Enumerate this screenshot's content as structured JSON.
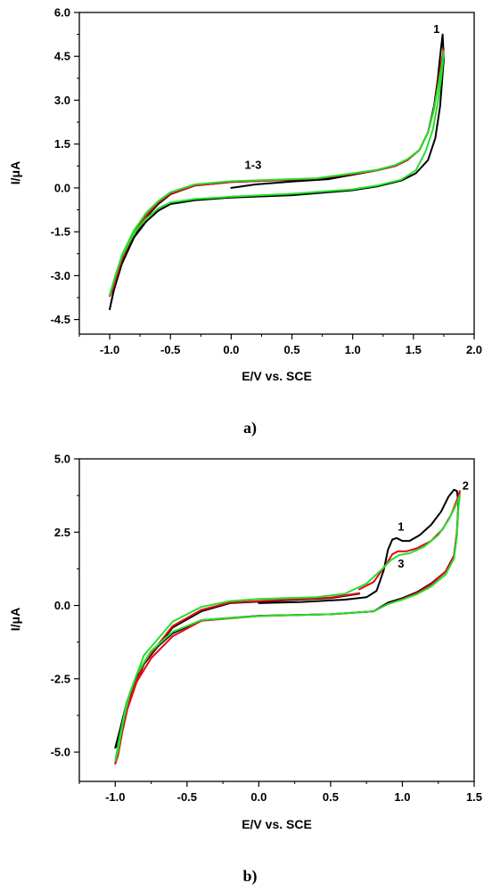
{
  "chart_data": [
    {
      "type": "line",
      "panel_label": "a)",
      "xlabel": "E/V vs. SCE",
      "ylabel": "I/μA",
      "xlim": [
        -1.25,
        2.0
      ],
      "ylim": [
        -5.0,
        6.0
      ],
      "x_ticks": [
        -1.0,
        -0.5,
        0.0,
        0.5,
        1.0,
        1.5,
        2.0
      ],
      "x_tick_labels": [
        "-1.0",
        "-0.5",
        "0.0",
        "0.5",
        "1.0",
        "1.5",
        "2.0"
      ],
      "y_ticks": [
        -4.5,
        -3.0,
        -1.5,
        0.0,
        1.5,
        3.0,
        4.5,
        6.0
      ],
      "y_tick_labels": [
        "-4.5",
        "-3.0",
        "-1.5",
        "0.0",
        "1.5",
        "3.0",
        "4.5",
        "6.0"
      ],
      "grid": false,
      "annotations": [
        {
          "text": "1",
          "x": 1.69,
          "y": 5.3
        },
        {
          "text": "1-3",
          "x": 0.18,
          "y": 0.65
        }
      ],
      "series": [
        {
          "color": "#000000",
          "points": [
            [
              0.0,
              0.0
            ],
            [
              0.2,
              0.12
            ],
            [
              0.5,
              0.22
            ],
            [
              0.8,
              0.3
            ],
            [
              1.0,
              0.45
            ],
            [
              1.2,
              0.6
            ],
            [
              1.35,
              0.75
            ],
            [
              1.45,
              0.95
            ],
            [
              1.55,
              1.3
            ],
            [
              1.62,
              1.9
            ],
            [
              1.67,
              2.8
            ],
            [
              1.7,
              3.7
            ],
            [
              1.72,
              4.5
            ],
            [
              1.74,
              5.25
            ],
            [
              1.75,
              4.4
            ],
            [
              1.72,
              2.8
            ],
            [
              1.68,
              1.7
            ],
            [
              1.62,
              0.95
            ],
            [
              1.52,
              0.5
            ],
            [
              1.4,
              0.25
            ],
            [
              1.2,
              0.05
            ],
            [
              1.0,
              -0.08
            ],
            [
              0.5,
              -0.25
            ],
            [
              0.0,
              -0.33
            ],
            [
              -0.3,
              -0.42
            ],
            [
              -0.5,
              -0.55
            ],
            [
              -0.6,
              -0.78
            ],
            [
              -0.7,
              -1.15
            ],
            [
              -0.8,
              -1.7
            ],
            [
              -0.9,
              -2.5
            ],
            [
              -0.95,
              -3.2
            ],
            [
              -1.0,
              -4.15
            ],
            [
              -0.97,
              -3.55
            ],
            [
              -0.9,
              -2.6
            ],
            [
              -0.8,
              -1.7
            ],
            [
              -0.7,
              -1.0
            ],
            [
              -0.6,
              -0.55
            ],
            [
              -0.5,
              -0.22
            ],
            [
              -0.3,
              0.08
            ],
            [
              0.0,
              0.2
            ],
            [
              0.3,
              0.25
            ],
            [
              0.7,
              0.3
            ],
            [
              1.0,
              0.45
            ]
          ]
        },
        {
          "color": "#e8001c",
          "points": [
            [
              -0.8,
              -1.55
            ],
            [
              -0.9,
              -2.4
            ],
            [
              -1.0,
              -3.7
            ],
            [
              -0.97,
              -3.4
            ],
            [
              -0.9,
              -2.45
            ],
            [
              -0.8,
              -1.55
            ],
            [
              -0.7,
              -0.95
            ],
            [
              -0.6,
              -0.5
            ],
            [
              -0.5,
              -0.2
            ],
            [
              -0.3,
              0.08
            ],
            [
              0.0,
              0.2
            ],
            [
              0.3,
              0.25
            ],
            [
              0.7,
              0.32
            ],
            [
              1.0,
              0.48
            ],
            [
              1.2,
              0.6
            ],
            [
              1.35,
              0.75
            ],
            [
              1.45,
              0.95
            ],
            [
              1.55,
              1.3
            ],
            [
              1.62,
              1.9
            ],
            [
              1.67,
              2.7
            ],
            [
              1.7,
              3.5
            ],
            [
              1.73,
              4.3
            ],
            [
              1.75,
              4.75
            ]
          ]
        },
        {
          "color": "#22e02a",
          "points": [
            [
              1.75,
              4.6
            ],
            [
              1.73,
              3.8
            ],
            [
              1.7,
              2.9
            ],
            [
              1.66,
              2.0
            ],
            [
              1.6,
              1.25
            ],
            [
              1.52,
              0.6
            ],
            [
              1.4,
              0.28
            ],
            [
              1.2,
              0.08
            ],
            [
              1.0,
              -0.05
            ],
            [
              0.5,
              -0.2
            ],
            [
              0.0,
              -0.3
            ],
            [
              -0.3,
              -0.38
            ],
            [
              -0.5,
              -0.5
            ],
            [
              -0.6,
              -0.7
            ],
            [
              -0.7,
              -1.05
            ],
            [
              -0.8,
              -1.55
            ],
            [
              -0.9,
              -2.35
            ],
            [
              -0.95,
              -2.95
            ],
            [
              -1.0,
              -3.65
            ],
            [
              -0.97,
              -3.25
            ],
            [
              -0.9,
              -2.3
            ],
            [
              -0.8,
              -1.45
            ],
            [
              -0.7,
              -0.85
            ],
            [
              -0.6,
              -0.45
            ],
            [
              -0.5,
              -0.15
            ],
            [
              -0.3,
              0.12
            ],
            [
              0.0,
              0.23
            ],
            [
              0.3,
              0.27
            ],
            [
              0.7,
              0.33
            ],
            [
              1.0,
              0.5
            ],
            [
              1.2,
              0.62
            ],
            [
              1.35,
              0.78
            ],
            [
              1.45,
              0.98
            ],
            [
              1.55,
              1.3
            ],
            [
              1.62,
              1.9
            ],
            [
              1.67,
              2.7
            ],
            [
              1.7,
              3.4
            ],
            [
              1.73,
              4.1
            ],
            [
              1.75,
              4.65
            ]
          ]
        }
      ]
    },
    {
      "type": "line",
      "panel_label": "b)",
      "xlabel": "E/V vs. SCE",
      "ylabel": "I/μA",
      "xlim": [
        -1.25,
        1.5
      ],
      "ylim": [
        -6.0,
        5.0
      ],
      "x_ticks": [
        -1.0,
        -0.5,
        0.0,
        0.5,
        1.0,
        1.5
      ],
      "x_tick_labels": [
        "-1.0",
        "-0.5",
        "0.0",
        "0.5",
        "1.0",
        "1.5"
      ],
      "y_ticks": [
        -5.0,
        -2.5,
        0.0,
        2.5,
        5.0
      ],
      "y_tick_labels": [
        "-5.0",
        "-2.5",
        "0.0",
        "2.5",
        "5.0"
      ],
      "grid": false,
      "annotations": [
        {
          "text": "2",
          "x": 1.44,
          "y": 3.95
        },
        {
          "text": "1",
          "x": 0.99,
          "y": 2.55
        },
        {
          "text": "3",
          "x": 0.99,
          "y": 1.3
        }
      ],
      "series": [
        {
          "color": "#000000",
          "points": [
            [
              0.0,
              0.08
            ],
            [
              0.3,
              0.12
            ],
            [
              0.6,
              0.2
            ],
            [
              0.75,
              0.28
            ],
            [
              0.82,
              0.5
            ],
            [
              0.87,
              1.2
            ],
            [
              0.9,
              1.9
            ],
            [
              0.93,
              2.25
            ],
            [
              0.96,
              2.3
            ],
            [
              1.0,
              2.2
            ],
            [
              1.05,
              2.2
            ],
            [
              1.12,
              2.4
            ],
            [
              1.2,
              2.75
            ],
            [
              1.27,
              3.2
            ],
            [
              1.32,
              3.7
            ],
            [
              1.36,
              3.95
            ],
            [
              1.38,
              3.9
            ],
            [
              1.39,
              3.5
            ],
            [
              1.38,
              2.5
            ],
            [
              1.36,
              1.7
            ],
            [
              1.3,
              1.15
            ],
            [
              1.2,
              0.75
            ],
            [
              1.1,
              0.45
            ],
            [
              1.0,
              0.25
            ],
            [
              0.9,
              0.1
            ],
            [
              0.8,
              -0.2
            ],
            [
              0.5,
              -0.3
            ],
            [
              0.0,
              -0.35
            ],
            [
              -0.4,
              -0.5
            ],
            [
              -0.6,
              -0.95
            ],
            [
              -0.75,
              -1.6
            ],
            [
              -0.85,
              -2.4
            ],
            [
              -0.92,
              -3.3
            ],
            [
              -0.97,
              -4.3
            ],
            [
              -1.0,
              -4.85
            ],
            [
              -0.98,
              -4.75
            ],
            [
              -0.95,
              -4.2
            ],
            [
              -0.9,
              -3.2
            ],
            [
              -0.8,
              -2.0
            ],
            [
              -0.6,
              -0.75
            ],
            [
              -0.4,
              -0.2
            ],
            [
              -0.2,
              0.08
            ],
            [
              0.2,
              0.18
            ],
            [
              0.5,
              0.25
            ],
            [
              0.7,
              0.4
            ]
          ]
        },
        {
          "color": "#e8001c",
          "points": [
            [
              0.7,
              0.55
            ],
            [
              0.8,
              0.8
            ],
            [
              0.88,
              1.35
            ],
            [
              0.93,
              1.75
            ],
            [
              0.97,
              1.85
            ],
            [
              1.03,
              1.85
            ],
            [
              1.1,
              1.95
            ],
            [
              1.2,
              2.2
            ],
            [
              1.28,
              2.6
            ],
            [
              1.34,
              3.1
            ],
            [
              1.38,
              3.6
            ],
            [
              1.4,
              3.9
            ],
            [
              1.39,
              3.4
            ],
            [
              1.38,
              2.5
            ],
            [
              1.36,
              1.7
            ],
            [
              1.3,
              1.15
            ],
            [
              1.2,
              0.72
            ],
            [
              1.1,
              0.42
            ],
            [
              1.0,
              0.22
            ],
            [
              0.9,
              0.05
            ],
            [
              0.8,
              -0.2
            ],
            [
              0.5,
              -0.3
            ],
            [
              0.0,
              -0.36
            ],
            [
              -0.4,
              -0.52
            ],
            [
              -0.6,
              -1.05
            ],
            [
              -0.75,
              -1.8
            ],
            [
              -0.85,
              -2.6
            ],
            [
              -0.92,
              -3.6
            ],
            [
              -0.97,
              -4.7
            ],
            [
              -1.0,
              -5.4
            ],
            [
              -0.98,
              -5.1
            ],
            [
              -0.95,
              -4.3
            ],
            [
              -0.9,
              -3.2
            ],
            [
              -0.8,
              -1.95
            ],
            [
              -0.6,
              -0.7
            ],
            [
              -0.4,
              -0.15
            ],
            [
              -0.2,
              0.1
            ],
            [
              0.2,
              0.2
            ],
            [
              0.5,
              0.27
            ],
            [
              0.7,
              0.42
            ]
          ]
        },
        {
          "color": "#22e02a",
          "points": [
            [
              0.0,
              0.22
            ],
            [
              0.4,
              0.28
            ],
            [
              0.6,
              0.4
            ],
            [
              0.75,
              0.75
            ],
            [
              0.85,
              1.2
            ],
            [
              0.92,
              1.55
            ],
            [
              0.98,
              1.72
            ],
            [
              1.05,
              1.78
            ],
            [
              1.15,
              2.0
            ],
            [
              1.25,
              2.4
            ],
            [
              1.32,
              2.9
            ],
            [
              1.37,
              3.4
            ],
            [
              1.4,
              3.75
            ],
            [
              1.39,
              3.3
            ],
            [
              1.38,
              2.4
            ],
            [
              1.36,
              1.6
            ],
            [
              1.3,
              1.05
            ],
            [
              1.2,
              0.65
            ],
            [
              1.1,
              0.38
            ],
            [
              1.0,
              0.2
            ],
            [
              0.9,
              0.05
            ],
            [
              0.8,
              -0.2
            ],
            [
              0.5,
              -0.3
            ],
            [
              0.0,
              -0.36
            ],
            [
              -0.4,
              -0.5
            ],
            [
              -0.6,
              -0.9
            ],
            [
              -0.75,
              -1.55
            ],
            [
              -0.85,
              -2.35
            ],
            [
              -0.92,
              -3.3
            ],
            [
              -0.97,
              -4.5
            ],
            [
              -1.0,
              -5.3
            ],
            [
              -0.98,
              -4.95
            ],
            [
              -0.95,
              -4.1
            ],
            [
              -0.9,
              -3.0
            ],
            [
              -0.8,
              -1.7
            ],
            [
              -0.6,
              -0.55
            ],
            [
              -0.4,
              -0.05
            ],
            [
              -0.2,
              0.15
            ],
            [
              0.0,
              0.22
            ]
          ]
        }
      ]
    }
  ]
}
